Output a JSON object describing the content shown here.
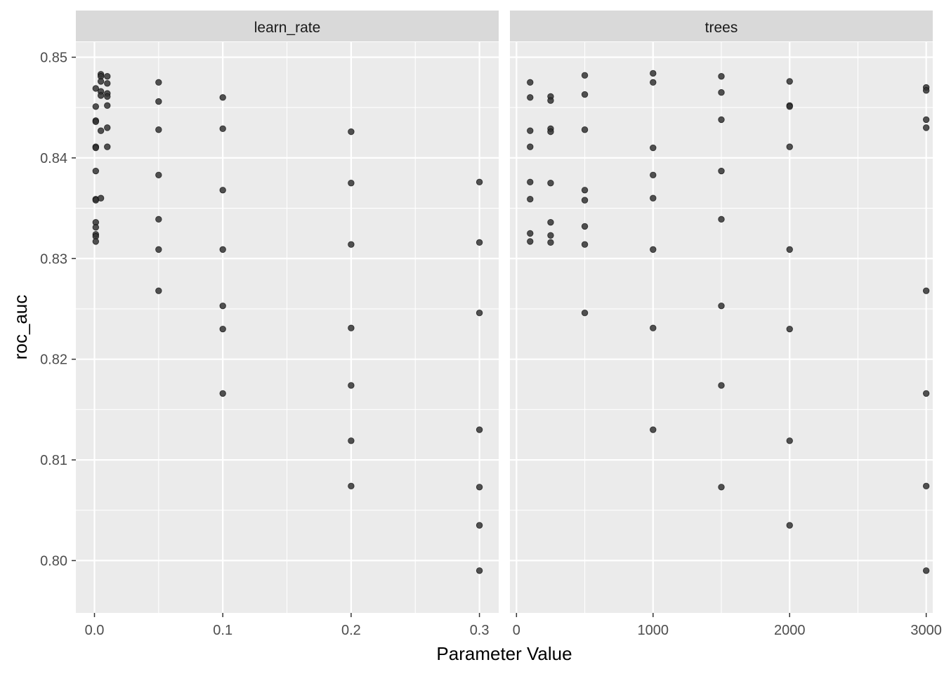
{
  "chart_data": {
    "type": "scatter",
    "xlabel": "Parameter Value",
    "ylabel": "roc_auc",
    "ylim": [
      0.7948,
      0.8515
    ],
    "y_ticks": [
      "0.80",
      "0.81",
      "0.82",
      "0.83",
      "0.84",
      "0.85"
    ],
    "grid": true,
    "panel_background": "#ebebeb",
    "strip_background": "#d9d9d9",
    "point_color": "#333333",
    "panels": [
      {
        "strip": "learn_rate",
        "xlim": [
          -0.0145,
          0.315
        ],
        "x_ticks": [
          "0.0",
          "0.1",
          "0.2",
          "0.3"
        ],
        "points": [
          {
            "x": 0.001,
            "y": 0.8469
          },
          {
            "x": 0.001,
            "y": 0.8451
          },
          {
            "x": 0.001,
            "y": 0.8437
          },
          {
            "x": 0.001,
            "y": 0.8436
          },
          {
            "x": 0.001,
            "y": 0.8411
          },
          {
            "x": 0.001,
            "y": 0.841
          },
          {
            "x": 0.001,
            "y": 0.8387
          },
          {
            "x": 0.001,
            "y": 0.8359
          },
          {
            "x": 0.001,
            "y": 0.8358
          },
          {
            "x": 0.001,
            "y": 0.8336
          },
          {
            "x": 0.001,
            "y": 0.8331
          },
          {
            "x": 0.001,
            "y": 0.8324
          },
          {
            "x": 0.001,
            "y": 0.8322
          },
          {
            "x": 0.001,
            "y": 0.8317
          },
          {
            "x": 0.005,
            "y": 0.8483
          },
          {
            "x": 0.005,
            "y": 0.8481
          },
          {
            "x": 0.005,
            "y": 0.8476
          },
          {
            "x": 0.005,
            "y": 0.8466
          },
          {
            "x": 0.005,
            "y": 0.8462
          },
          {
            "x": 0.005,
            "y": 0.8427
          },
          {
            "x": 0.005,
            "y": 0.836
          },
          {
            "x": 0.01,
            "y": 0.8481
          },
          {
            "x": 0.01,
            "y": 0.8474
          },
          {
            "x": 0.01,
            "y": 0.8464
          },
          {
            "x": 0.01,
            "y": 0.8461
          },
          {
            "x": 0.01,
            "y": 0.8452
          },
          {
            "x": 0.01,
            "y": 0.843
          },
          {
            "x": 0.01,
            "y": 0.8411
          },
          {
            "x": 0.05,
            "y": 0.8475
          },
          {
            "x": 0.05,
            "y": 0.8456
          },
          {
            "x": 0.05,
            "y": 0.8428
          },
          {
            "x": 0.05,
            "y": 0.8383
          },
          {
            "x": 0.05,
            "y": 0.8339
          },
          {
            "x": 0.05,
            "y": 0.8309
          },
          {
            "x": 0.05,
            "y": 0.8268
          },
          {
            "x": 0.1,
            "y": 0.846
          },
          {
            "x": 0.1,
            "y": 0.8429
          },
          {
            "x": 0.1,
            "y": 0.8368
          },
          {
            "x": 0.1,
            "y": 0.8309
          },
          {
            "x": 0.1,
            "y": 0.8253
          },
          {
            "x": 0.1,
            "y": 0.823
          },
          {
            "x": 0.1,
            "y": 0.8166
          },
          {
            "x": 0.2,
            "y": 0.8426
          },
          {
            "x": 0.2,
            "y": 0.8375
          },
          {
            "x": 0.2,
            "y": 0.8314
          },
          {
            "x": 0.2,
            "y": 0.8231
          },
          {
            "x": 0.2,
            "y": 0.8174
          },
          {
            "x": 0.2,
            "y": 0.8119
          },
          {
            "x": 0.2,
            "y": 0.8074
          },
          {
            "x": 0.3,
            "y": 0.8376
          },
          {
            "x": 0.3,
            "y": 0.8316
          },
          {
            "x": 0.3,
            "y": 0.8246
          },
          {
            "x": 0.3,
            "y": 0.813
          },
          {
            "x": 0.3,
            "y": 0.8073
          },
          {
            "x": 0.3,
            "y": 0.8035
          },
          {
            "x": 0.3,
            "y": 0.799
          }
        ]
      },
      {
        "strip": "trees",
        "xlim": [
          -48,
          3048
        ],
        "x_ticks": [
          "0",
          "1000",
          "2000",
          "3000"
        ],
        "points": [
          {
            "x": 100,
            "y": 0.8475
          },
          {
            "x": 100,
            "y": 0.846
          },
          {
            "x": 100,
            "y": 0.8427
          },
          {
            "x": 100,
            "y": 0.8411
          },
          {
            "x": 100,
            "y": 0.8376
          },
          {
            "x": 100,
            "y": 0.8359
          },
          {
            "x": 100,
            "y": 0.8325
          },
          {
            "x": 100,
            "y": 0.8317
          },
          {
            "x": 250,
            "y": 0.8461
          },
          {
            "x": 250,
            "y": 0.8457
          },
          {
            "x": 250,
            "y": 0.8429
          },
          {
            "x": 250,
            "y": 0.8426
          },
          {
            "x": 250,
            "y": 0.8375
          },
          {
            "x": 250,
            "y": 0.8336
          },
          {
            "x": 250,
            "y": 0.8323
          },
          {
            "x": 250,
            "y": 0.8316
          },
          {
            "x": 500,
            "y": 0.8482
          },
          {
            "x": 500,
            "y": 0.8463
          },
          {
            "x": 500,
            "y": 0.8428
          },
          {
            "x": 500,
            "y": 0.8368
          },
          {
            "x": 500,
            "y": 0.8358
          },
          {
            "x": 500,
            "y": 0.8332
          },
          {
            "x": 500,
            "y": 0.8314
          },
          {
            "x": 500,
            "y": 0.8246
          },
          {
            "x": 1000,
            "y": 0.8484
          },
          {
            "x": 1000,
            "y": 0.8475
          },
          {
            "x": 1000,
            "y": 0.841
          },
          {
            "x": 1000,
            "y": 0.8383
          },
          {
            "x": 1000,
            "y": 0.836
          },
          {
            "x": 1000,
            "y": 0.8309
          },
          {
            "x": 1000,
            "y": 0.8231
          },
          {
            "x": 1000,
            "y": 0.813
          },
          {
            "x": 1500,
            "y": 0.8481
          },
          {
            "x": 1500,
            "y": 0.8465
          },
          {
            "x": 1500,
            "y": 0.8438
          },
          {
            "x": 1500,
            "y": 0.8387
          },
          {
            "x": 1500,
            "y": 0.8339
          },
          {
            "x": 1500,
            "y": 0.8253
          },
          {
            "x": 1500,
            "y": 0.8174
          },
          {
            "x": 1500,
            "y": 0.8073
          },
          {
            "x": 2000,
            "y": 0.8476
          },
          {
            "x": 2000,
            "y": 0.8452
          },
          {
            "x": 2000,
            "y": 0.8451
          },
          {
            "x": 2000,
            "y": 0.8411
          },
          {
            "x": 2000,
            "y": 0.8309
          },
          {
            "x": 2000,
            "y": 0.823
          },
          {
            "x": 2000,
            "y": 0.8119
          },
          {
            "x": 2000,
            "y": 0.8035
          },
          {
            "x": 3000,
            "y": 0.847
          },
          {
            "x": 3000,
            "y": 0.8467
          },
          {
            "x": 3000,
            "y": 0.8438
          },
          {
            "x": 3000,
            "y": 0.843
          },
          {
            "x": 3000,
            "y": 0.8268
          },
          {
            "x": 3000,
            "y": 0.8166
          },
          {
            "x": 3000,
            "y": 0.8074
          },
          {
            "x": 3000,
            "y": 0.799
          }
        ]
      }
    ]
  }
}
